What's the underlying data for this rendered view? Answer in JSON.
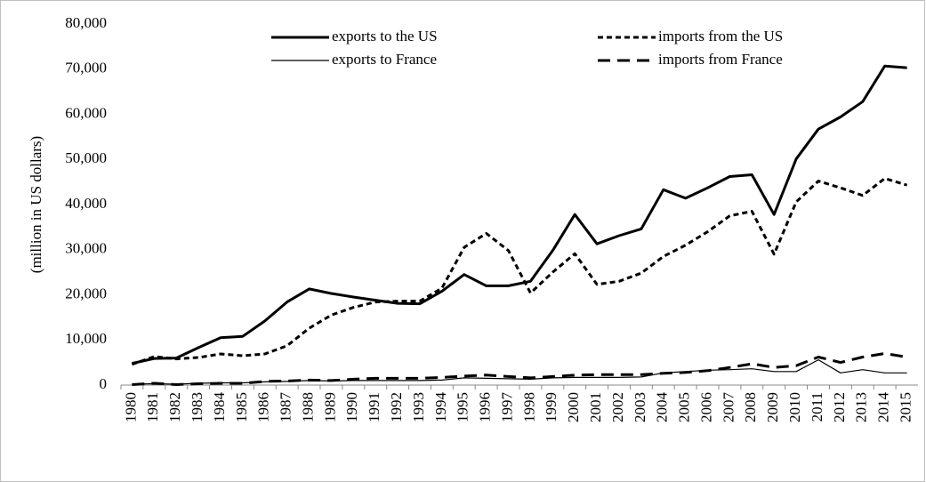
{
  "chart_data": {
    "type": "line",
    "y_label": "(million in US dollars)",
    "categories": [
      "1980",
      "1981",
      "1982",
      "1983",
      "1984",
      "1985",
      "1986",
      "1987",
      "1988",
      "1989",
      "1990",
      "1991",
      "1992",
      "1993",
      "1994",
      "1995",
      "1996",
      "1997",
      "1998",
      "1999",
      "2000",
      "2001",
      "2002",
      "2003",
      "2004",
      "2005",
      "2006",
      "2007",
      "2008",
      "2009",
      "2010",
      "2011",
      "2012",
      "2013",
      "2014",
      "2015"
    ],
    "series": [
      {
        "name": "exports to the US",
        "color": "#000000",
        "line_style": "solid",
        "line_width": 3,
        "values": [
          4800,
          5900,
          6000,
          8300,
          10500,
          10800,
          14200,
          18400,
          21300,
          20300,
          19500,
          18800,
          18100,
          18000,
          20800,
          24500,
          22000,
          22000,
          23000,
          29800,
          37800,
          31300,
          33100,
          34600,
          43300,
          41400,
          43700,
          46200,
          46600,
          37800,
          50100,
          56700,
          59400,
          62800,
          70700,
          70300
        ]
      },
      {
        "name": "imports from the US",
        "color": "#000000",
        "line_style": "short-dash",
        "line_width": 3,
        "values": [
          4600,
          6300,
          5800,
          6100,
          6900,
          6500,
          6900,
          8700,
          12600,
          15500,
          17200,
          18400,
          18600,
          18600,
          21500,
          30500,
          33600,
          29800,
          20400,
          25000,
          29100,
          22300,
          23000,
          24800,
          28500,
          31000,
          34000,
          37500,
          38500,
          29000,
          40600,
          45200,
          43700,
          42000,
          45800,
          44300
        ]
      },
      {
        "name": "exports to France",
        "color": "#000000",
        "line_style": "solid",
        "line_width": 1.2,
        "values": [
          200,
          300,
          200,
          400,
          500,
          500,
          700,
          800,
          1000,
          900,
          1000,
          1000,
          1000,
          1000,
          1100,
          1600,
          1500,
          1400,
          1300,
          1600,
          1700,
          1700,
          1700,
          1800,
          2700,
          3000,
          3300,
          3400,
          3600,
          3000,
          3000,
          5600,
          2700,
          3400,
          2700,
          2700
        ]
      },
      {
        "name": "imports from France",
        "color": "#000000",
        "line_style": "long-dash",
        "line_width": 3,
        "values": [
          100,
          400,
          100,
          300,
          400,
          400,
          800,
          900,
          1100,
          1000,
          1300,
          1500,
          1500,
          1500,
          1700,
          2000,
          2200,
          1900,
          1600,
          1900,
          2200,
          2300,
          2300,
          2300,
          2600,
          2800,
          3200,
          3900,
          4700,
          3900,
          4300,
          6200,
          5000,
          6200,
          7000,
          6200
        ]
      }
    ],
    "ylim": [
      0,
      80000
    ],
    "yticks": [
      0,
      {
        "value": 10000,
        "label": "10,000"
      },
      {
        "value": 20000,
        "label": "20,000"
      },
      {
        "value": 30000,
        "label": "30,000"
      },
      {
        "value": 40000,
        "label": "40,000"
      },
      {
        "value": 50000,
        "label": "50,000"
      },
      {
        "value": 60000,
        "label": "60,000"
      },
      {
        "value": 70000,
        "label": "70,000"
      },
      {
        "value": 80000,
        "label": "80,000"
      }
    ],
    "grid": false
  }
}
